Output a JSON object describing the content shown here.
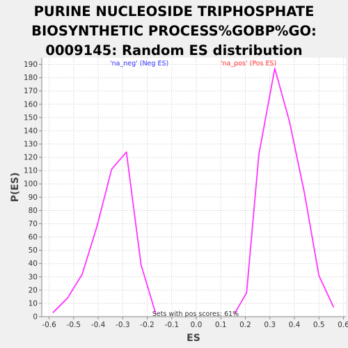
{
  "chart_data": {
    "type": "line",
    "title_lines": [
      "PURINE NUCLEOSIDE TRIPHOSPHATE",
      "BIOSYNTHETIC PROCESS%GOBP%GO:",
      "0009145: Random ES distribution"
    ],
    "xlabel": "ES",
    "ylabel": "P(ES)",
    "xlim": [
      -0.63,
      0.61
    ],
    "ylim": [
      0,
      195
    ],
    "xticks": [
      -0.6,
      -0.5,
      -0.4,
      -0.3,
      -0.2,
      -0.1,
      0.0,
      0.1,
      0.2,
      0.3,
      0.4,
      0.5,
      0.6
    ],
    "xtick_labels": [
      "-0.6",
      "-0.5",
      "-0.4",
      "-0.3",
      "-0.2",
      "-0.1",
      "0.0",
      "0.1",
      "0.2",
      "0.3",
      "0.4",
      "0.5",
      "0.6"
    ],
    "yticks": [
      0,
      10,
      20,
      30,
      40,
      50,
      60,
      70,
      80,
      90,
      100,
      110,
      120,
      130,
      140,
      150,
      160,
      170,
      180,
      190
    ],
    "ytick_labels": [
      "0",
      "10",
      "20",
      "30",
      "40",
      "50",
      "60",
      "70",
      "80",
      "90",
      "100",
      "110",
      "120",
      "130",
      "140",
      "150",
      "160",
      "170",
      "180",
      "190"
    ],
    "grid": true,
    "line_color": "#ff33ff",
    "legend": [
      {
        "label": "'na_neg' (Neg ES)",
        "color": "#3333ff"
      },
      {
        "label": "'na_pos' (Pos ES)",
        "color": "#ff3333"
      }
    ],
    "annotation": "Sets with pos scores: 61%",
    "series": [
      {
        "x": [
          -0.585,
          -0.525,
          -0.465,
          -0.405,
          -0.345,
          -0.285,
          -0.225,
          -0.165
        ],
        "y": [
          3,
          14,
          32,
          68,
          111,
          124,
          39,
          2
        ]
      },
      {
        "x": [
          0.155,
          0.205,
          0.255,
          0.32,
          0.38,
          0.44,
          0.5,
          0.56
        ],
        "y": [
          2,
          18,
          122,
          187,
          147,
          94,
          31,
          7
        ]
      }
    ]
  }
}
